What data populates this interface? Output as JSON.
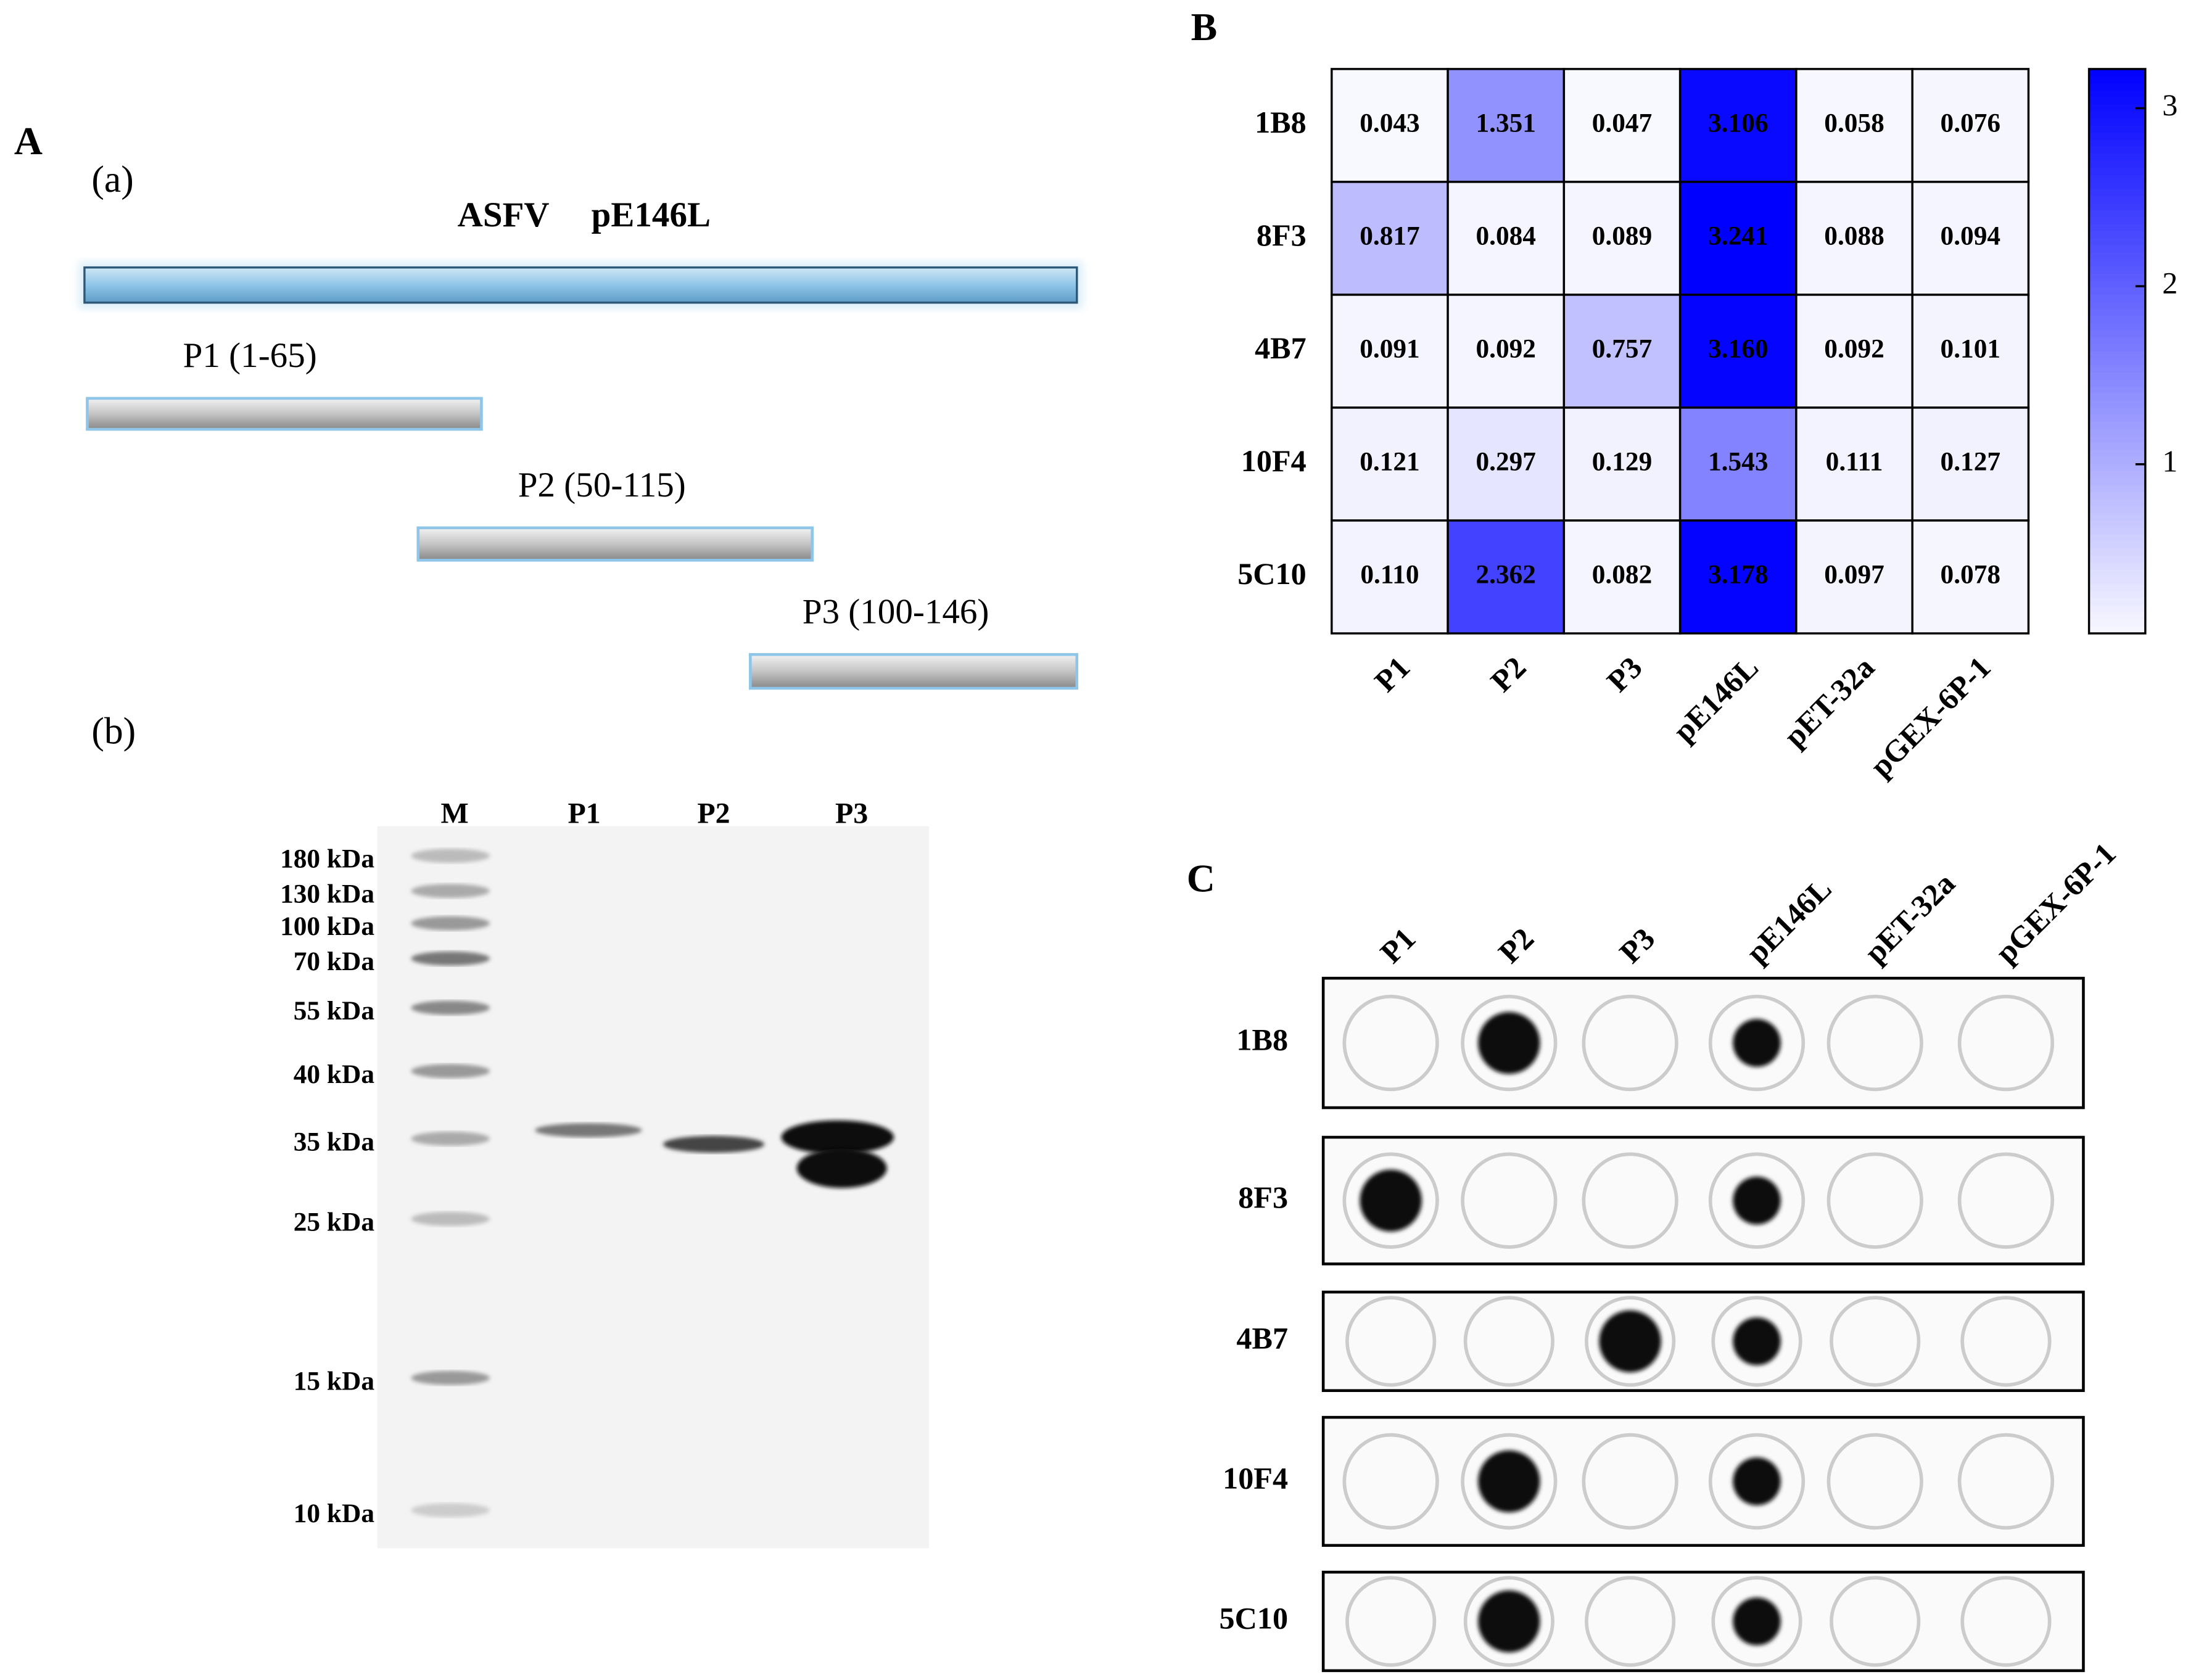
{
  "panel_a": {
    "label": "A",
    "part_a": {
      "label": "(a)",
      "construct": "ASFV pE146L",
      "fragments": [
        "P1 (1-65)",
        "P2 (50-115)",
        "P3 (100-146)"
      ]
    },
    "part_b": {
      "label": "(b)",
      "lanes": [
        "M",
        "P1",
        "P2",
        "P3"
      ],
      "markers": [
        "180 kDa",
        "130 kDa",
        "100 kDa",
        "70 kDa",
        "55 kDa",
        "40 kDa",
        "35 kDa",
        "25 kDa",
        "15 kDa",
        "10 kDa"
      ]
    }
  },
  "chart_data": {
    "type": "heatmap",
    "label": "B",
    "rows": [
      "1B8",
      "8F3",
      "4B7",
      "10F4",
      "5C10"
    ],
    "categories": [
      "P1",
      "P2",
      "P3",
      "pE146L",
      "pET-32a",
      "pGEX-6P-1"
    ],
    "values": [
      [
        0.043,
        1.351,
        0.047,
        3.106,
        0.058,
        0.076
      ],
      [
        0.817,
        0.084,
        0.089,
        3.241,
        0.088,
        0.094
      ],
      [
        0.091,
        0.092,
        0.757,
        3.16,
        0.092,
        0.101
      ],
      [
        0.121,
        0.297,
        0.129,
        1.543,
        0.111,
        0.127
      ],
      [
        0.11,
        2.362,
        0.082,
        3.178,
        0.097,
        0.078
      ]
    ],
    "value_labels": [
      [
        "0.043",
        "1.351",
        "0.047",
        "3.106",
        "0.058",
        "0.076"
      ],
      [
        "0.817",
        "0.084",
        "0.089",
        "3.241",
        "0.088",
        "0.094"
      ],
      [
        "0.091",
        "0.092",
        "0.757",
        "3.160",
        "0.092",
        "0.101"
      ],
      [
        "0.121",
        "0.297",
        "0.129",
        "1.543",
        "0.111",
        "0.127"
      ],
      [
        "0.110",
        "2.362",
        "0.082",
        "3.178",
        "0.097",
        "0.078"
      ]
    ],
    "zlim": [
      0.05,
      3.22
    ],
    "zticks": [
      1,
      2,
      3
    ],
    "colors": [
      "#f8f8ff",
      "#0000ff"
    ]
  },
  "panel_c": {
    "label": "C",
    "columns": [
      "P1",
      "P2",
      "P3",
      "pE146L",
      "pET-32a",
      "pGEX-6P-1"
    ],
    "rows": [
      "1B8",
      "8F3",
      "4B7",
      "10F4",
      "5C10"
    ]
  }
}
